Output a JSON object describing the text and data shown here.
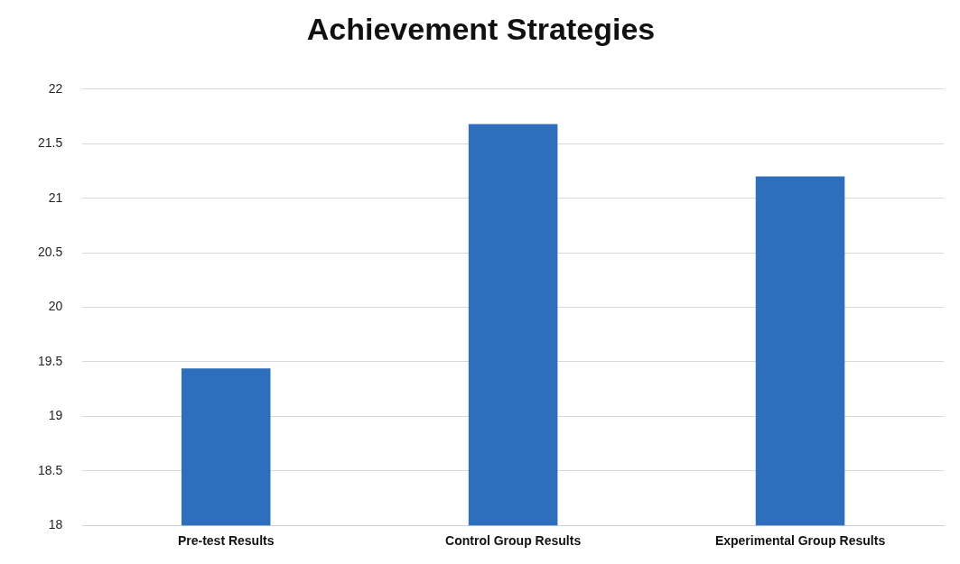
{
  "chart_data": {
    "type": "bar",
    "title": "Achievement Strategies",
    "categories": [
      "Pre-test Results",
      "Control Group Results",
      "Experimental Group Results"
    ],
    "values": [
      19.44,
      21.68,
      21.2
    ],
    "color": "#2e6fbd",
    "ylim": [
      18,
      22
    ],
    "yticks": [
      18,
      18.5,
      19,
      19.5,
      20,
      20.5,
      21,
      21.5,
      22
    ],
    "grid": "y",
    "legend": false
  }
}
